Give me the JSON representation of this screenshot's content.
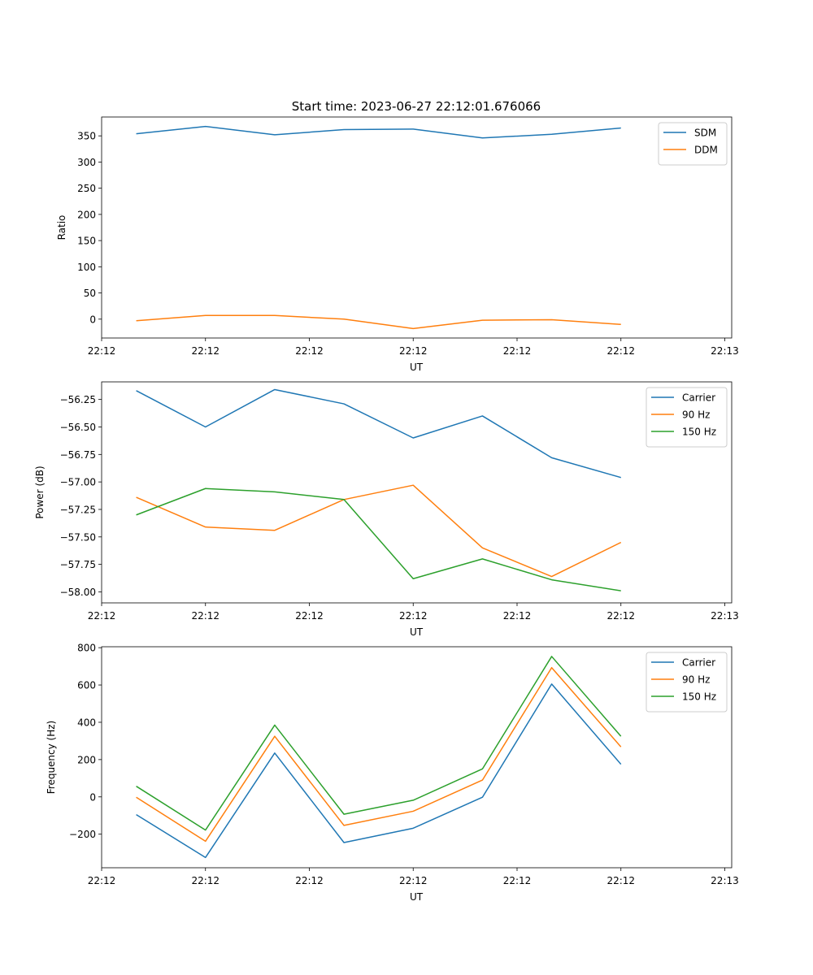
{
  "figure": {
    "title": "Start time: 2023-06-27 22:12:01.676066"
  },
  "chart_data": [
    {
      "type": "line",
      "title": "Start time: 2023-06-27 22:12:01.676066",
      "xlabel": "UT",
      "ylabel": "Ratio",
      "x_tick_labels": [
        "22:12",
        "22:12",
        "22:12",
        "22:12",
        "22:12",
        "22:12",
        "22:13"
      ],
      "x": [
        1,
        2,
        3,
        4,
        5,
        6,
        7,
        8
      ],
      "xlim": [
        0.5,
        9.6
      ],
      "x_ticks": [
        0.5,
        2,
        3.5,
        5,
        6.5,
        8,
        9.5
      ],
      "ylim": [
        -36,
        386
      ],
      "y_ticks": [
        0,
        50,
        100,
        150,
        200,
        250,
        300,
        350
      ],
      "y_tick_labels": [
        "0",
        "50",
        "100",
        "150",
        "200",
        "250",
        "300",
        "350"
      ],
      "grid": false,
      "legend": "top-right",
      "series": [
        {
          "name": "SDM",
          "color": "#1f77b4",
          "values": [
            354,
            368,
            352,
            362,
            363,
            346,
            353,
            365
          ]
        },
        {
          "name": "DDM",
          "color": "#ff7f0e",
          "values": [
            -3,
            7,
            7,
            0,
            -18,
            -2,
            -1,
            -10
          ]
        }
      ]
    },
    {
      "type": "line",
      "xlabel": "UT",
      "ylabel": "Power (dB)",
      "x_tick_labels": [
        "22:12",
        "22:12",
        "22:12",
        "22:12",
        "22:12",
        "22:12",
        "22:13"
      ],
      "x": [
        1,
        2,
        3,
        4,
        5,
        6,
        7,
        8
      ],
      "xlim": [
        0.5,
        9.6
      ],
      "x_ticks": [
        0.5,
        2,
        3.5,
        5,
        6.5,
        8,
        9.5
      ],
      "ylim": [
        -58.1,
        -56.09
      ],
      "y_ticks": [
        -58.0,
        -57.75,
        -57.5,
        -57.25,
        -57.0,
        -56.75,
        -56.5,
        -56.25
      ],
      "y_tick_labels": [
        "−58.00",
        "−57.75",
        "−57.50",
        "−57.25",
        "−57.00",
        "−56.75",
        "−56.50",
        "−56.25"
      ],
      "grid": false,
      "legend": "top-right",
      "series": [
        {
          "name": "Carrier",
          "color": "#1f77b4",
          "values": [
            -56.17,
            -56.5,
            -56.16,
            -56.29,
            -56.6,
            -56.4,
            -56.78,
            -56.96
          ]
        },
        {
          "name": "90 Hz",
          "color": "#ff7f0e",
          "values": [
            -57.14,
            -57.41,
            -57.44,
            -57.16,
            -57.03,
            -57.6,
            -57.86,
            -57.55
          ]
        },
        {
          "name": "150 Hz",
          "color": "#2ca02c",
          "values": [
            -57.3,
            -57.06,
            -57.09,
            -57.16,
            -57.88,
            -57.7,
            -57.89,
            -57.99
          ]
        }
      ]
    },
    {
      "type": "line",
      "xlabel": "UT",
      "ylabel": "Frequency (Hz)",
      "x_tick_labels": [
        "22:12",
        "22:12",
        "22:12",
        "22:12",
        "22:12",
        "22:12",
        "22:13"
      ],
      "x": [
        1,
        2,
        3,
        4,
        5,
        6,
        7,
        8
      ],
      "xlim": [
        0.5,
        9.6
      ],
      "x_ticks": [
        0.5,
        2,
        3.5,
        5,
        6.5,
        8,
        9.5
      ],
      "ylim": [
        -380,
        805
      ],
      "y_ticks": [
        -200,
        0,
        200,
        400,
        600,
        800
      ],
      "y_tick_labels": [
        "−200",
        "0",
        "200",
        "400",
        "600",
        "800"
      ],
      "grid": false,
      "legend": "top-right",
      "series": [
        {
          "name": "Carrier",
          "color": "#1f77b4",
          "values": [
            -95,
            -325,
            235,
            -245,
            -168,
            -2,
            605,
            175
          ]
        },
        {
          "name": "90 Hz",
          "color": "#ff7f0e",
          "values": [
            -2,
            -238,
            325,
            -153,
            -77,
            90,
            693,
            268
          ]
        },
        {
          "name": "150 Hz",
          "color": "#2ca02c",
          "values": [
            57,
            -178,
            385,
            -93,
            -18,
            150,
            753,
            325
          ]
        }
      ]
    }
  ]
}
